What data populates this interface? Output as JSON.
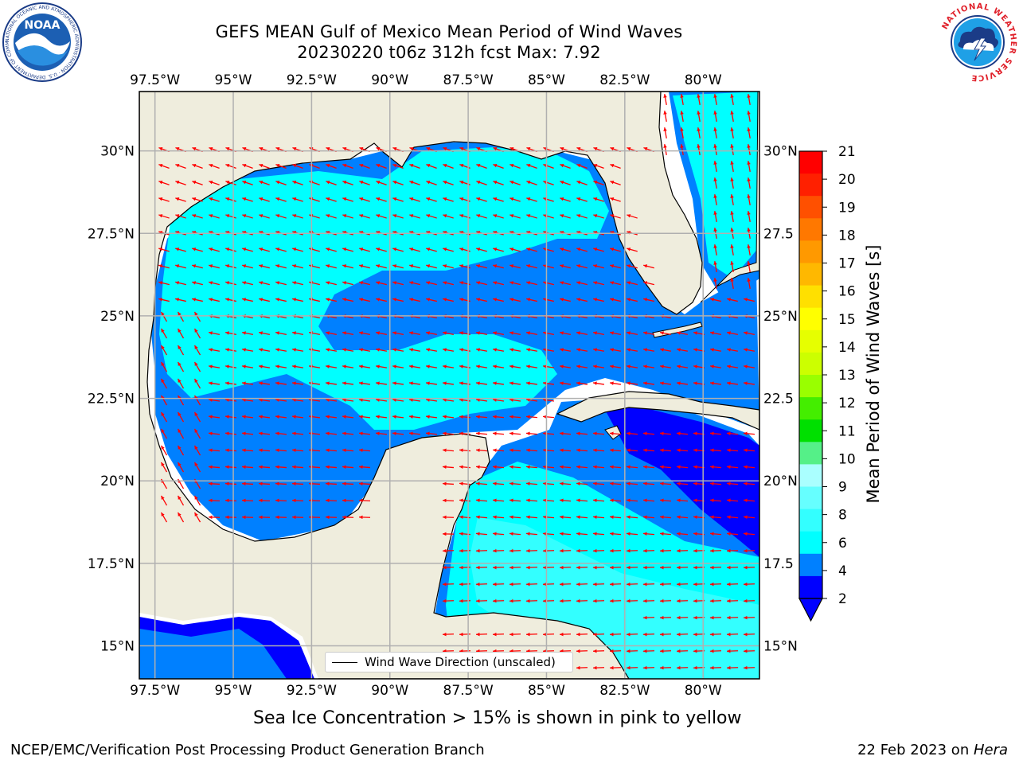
{
  "header": {
    "title_line1": "GEFS MEAN Gulf of Mexico Mean Period of Wind Waves",
    "title_line2": "20230220 t06z 312h fcst   Max: 7.92"
  },
  "logos": {
    "left": {
      "text": "NOAA",
      "ring": "NATIONAL OCEANIC AND ATMOSPHERIC ADMINISTRATION · U.S. DEPARTMENT OF COMMERCE"
    },
    "right": {
      "ring": "NATIONAL WEATHER SERVICE"
    }
  },
  "map": {
    "lon_ticks": [
      "97.5°W",
      "95°W",
      "92.5°W",
      "90°W",
      "87.5°W",
      "85°W",
      "82.5°W",
      "80°W"
    ],
    "lat_ticks_left": [
      "30°N",
      "27.5°N",
      "25°N",
      "22.5°N",
      "20°N",
      "17.5°N",
      "15°N"
    ],
    "lat_ticks_right": [
      "30°N",
      "27.5",
      "25°N",
      "22.5",
      "20°N",
      "17.5",
      "15°N"
    ],
    "extent": {
      "lon_min": -98,
      "lon_max": -78.2,
      "lat_min": 14,
      "lat_max": 31.8
    },
    "colors": {
      "land": "#efeddd",
      "coast": "#000000",
      "grid": "#b0b0b0",
      "arrow": "#ff0000"
    }
  },
  "legend": {
    "label": "Wind Wave Direction (unscaled)"
  },
  "colorbar": {
    "label": "Mean Period of Wind Waves [s]",
    "ticks": [
      "21",
      "20",
      "19",
      "18",
      "17",
      "16",
      "15",
      "14",
      "13",
      "12",
      "11",
      "10",
      "9",
      "8",
      "6",
      "4",
      "2"
    ],
    "colors_top_to_bottom": [
      "#ff0000",
      "#ff2000",
      "#ff5000",
      "#ff7800",
      "#ff9900",
      "#ffb800",
      "#ffe000",
      "#ffff00",
      "#e6ff00",
      "#ccff00",
      "#99ff00",
      "#44ee00",
      "#00e000",
      "#55f088",
      "#aaffff",
      "#66ffff",
      "#33ffff",
      "#00ffff",
      "#0080ff",
      "#0000ff"
    ],
    "extend_color": "#0000ff"
  },
  "footer": {
    "ice_note": "Sea Ice Concentration > 15% is shown in pink to yellow",
    "credit": "NCEP/EMC/Verification Post Processing Product Generation Branch",
    "date": "22 Feb 2023 on ",
    "host": "Hera"
  }
}
